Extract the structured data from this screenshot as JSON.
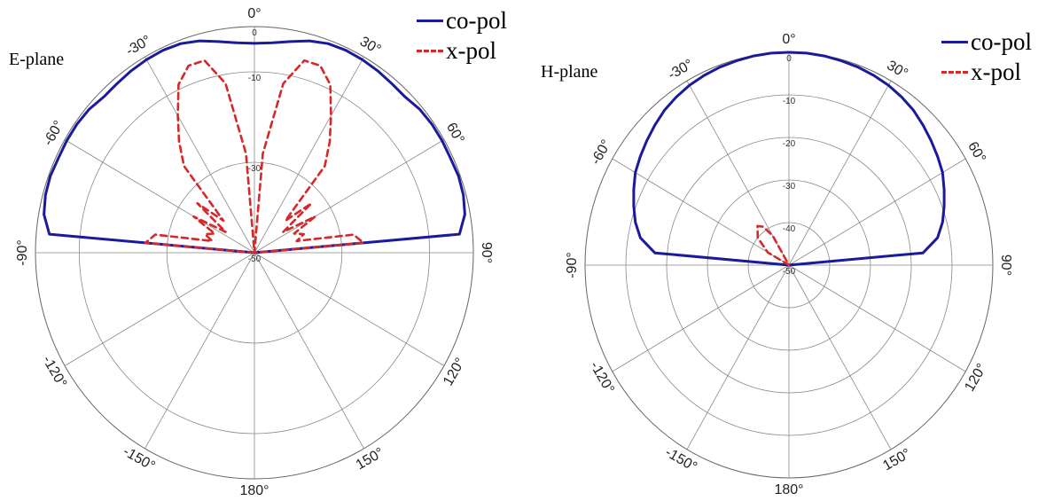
{
  "chart_data": [
    {
      "type": "polar-line",
      "title": "E-plane",
      "angle_tick_labels": [
        "0°",
        "30°",
        "60°",
        "90°",
        "120°",
        "150°",
        "180°",
        "-150°",
        "-120°",
        "-90°",
        "-60°",
        "-30°"
      ],
      "radial_tick_labels": [
        "0",
        "-10",
        "-30",
        "-50"
      ],
      "radial_ticks": [
        0,
        -10,
        -30,
        -50
      ],
      "rlim": [
        -50,
        0
      ],
      "grid": true,
      "legend_position": "top-right",
      "series": [
        {
          "name": "co-pol",
          "color": "#1a1a9c",
          "style": "solid",
          "angles": [
            -90,
            -85,
            -80,
            -75,
            -70,
            -65,
            -60,
            -55,
            -50,
            -45,
            -40,
            -35,
            -30,
            -25,
            -20,
            -15,
            -10,
            -5,
            0,
            5,
            10,
            15,
            20,
            25,
            30,
            35,
            40,
            45,
            50,
            55,
            60,
            65,
            70,
            75,
            80,
            85,
            90
          ],
          "values": [
            -50,
            -3,
            -1.2,
            -0.6,
            -0.4,
            -0.6,
            -0.5,
            -0.5,
            -0.7,
            -1.3,
            -1.2,
            -0.9,
            -0.7,
            -0.6,
            -0.8,
            -1.5,
            -2.6,
            -3.4,
            -3.7,
            -3.4,
            -2.6,
            -1.5,
            -0.8,
            -0.6,
            -0.7,
            -0.9,
            -1.2,
            -1.3,
            -0.7,
            -0.5,
            -0.5,
            -0.6,
            -0.4,
            -0.6,
            -1.2,
            -3,
            -50
          ]
        },
        {
          "name": "x-pol",
          "color": "#d62828",
          "style": "dashed",
          "angles": [
            -90,
            -85,
            -80,
            -75,
            -70,
            -65,
            -60,
            -55,
            -50,
            -45,
            -40,
            -35,
            -30,
            -25,
            -20,
            -15,
            -10,
            -5,
            0,
            5,
            10,
            15,
            20,
            25,
            30,
            35,
            40,
            45,
            50,
            55,
            60,
            65,
            70,
            75,
            80,
            85,
            90
          ],
          "values": [
            -50,
            -25,
            -27,
            -40,
            -38,
            -40,
            -34,
            -42,
            -33,
            -40,
            -25,
            -20,
            -15,
            -9,
            -6,
            -6,
            -12,
            -28,
            -50,
            -28,
            -12,
            -6,
            -6,
            -9,
            -15,
            -20,
            -25,
            -40,
            -33,
            -42,
            -34,
            -40,
            -38,
            -40,
            -27,
            -25,
            -50
          ]
        }
      ]
    },
    {
      "type": "polar-line",
      "title": "H-plane",
      "angle_tick_labels": [
        "0°",
        "30°",
        "60°",
        "90°",
        "120°",
        "150°",
        "180°",
        "-150°",
        "-120°",
        "-90°",
        "-60°",
        "-30°"
      ],
      "radial_tick_labels": [
        "0",
        "-10",
        "-20",
        "-30",
        "-40",
        "-50"
      ],
      "radial_ticks": [
        0,
        -10,
        -20,
        -30,
        -40,
        -50
      ],
      "rlim": [
        -50,
        0
      ],
      "grid": true,
      "legend_position": "top-right",
      "series": [
        {
          "name": "co-pol",
          "color": "#1a1a9c",
          "style": "solid",
          "angles": [
            -90,
            -85,
            -80,
            -75,
            -70,
            -65,
            -60,
            -55,
            -50,
            -45,
            -40,
            -35,
            -30,
            -25,
            -20,
            -15,
            -10,
            -5,
            0,
            5,
            10,
            15,
            20,
            25,
            30,
            35,
            40,
            45,
            50,
            55,
            60,
            65,
            70,
            75,
            80,
            85,
            90
          ],
          "values": [
            -50,
            -17,
            -13,
            -11,
            -9.5,
            -8,
            -6.5,
            -5.5,
            -4.5,
            -3.5,
            -2.5,
            -1.8,
            -1.2,
            -0.8,
            -0.5,
            -0.3,
            -0.1,
            0,
            0,
            0,
            -0.1,
            -0.3,
            -0.5,
            -0.8,
            -1.2,
            -1.8,
            -2.5,
            -3.5,
            -4.5,
            -5.5,
            -6.5,
            -8,
            -9.5,
            -11,
            -13,
            -17,
            -50
          ]
        },
        {
          "name": "x-pol",
          "color": "#d62828",
          "style": "dashed",
          "angles": [
            -90,
            -70,
            -60,
            -50,
            -40,
            -35,
            -30,
            -20,
            0,
            90
          ],
          "values": [
            -50,
            -50,
            -44,
            -40,
            -38,
            -39,
            -42,
            -50,
            -50,
            -50
          ]
        }
      ]
    }
  ]
}
